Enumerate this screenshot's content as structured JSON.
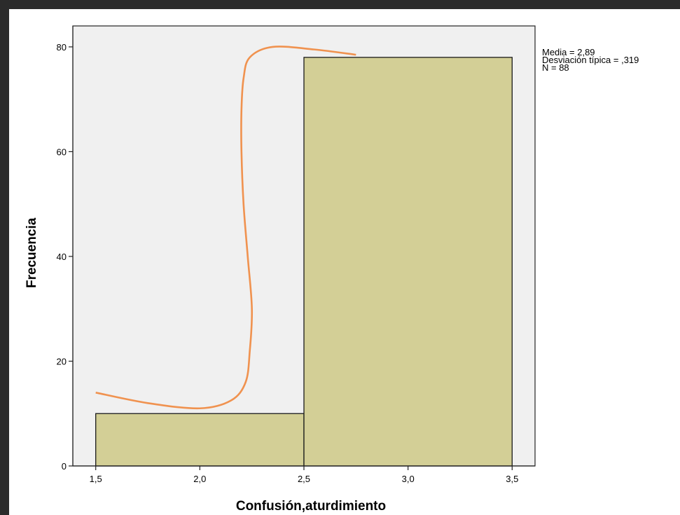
{
  "chart_data": {
    "type": "bar",
    "subtype": "histogram",
    "bins": [
      {
        "start": 1.5,
        "end": 2.5,
        "count": 10
      },
      {
        "start": 2.5,
        "end": 3.5,
        "count": 78
      }
    ],
    "x_ticks": [
      1.5,
      2.0,
      2.5,
      3.0,
      3.5
    ],
    "x_tick_labels": [
      "1,5",
      "2,0",
      "2,5",
      "3,0",
      "3,5"
    ],
    "y_ticks": [
      0,
      20,
      40,
      60,
      80
    ],
    "y_tick_labels": [
      "0",
      "20",
      "40",
      "60",
      "80"
    ],
    "xlim": [
      1.39,
      3.61
    ],
    "ylim": [
      0,
      84
    ],
    "xlabel": "Confusión,aturdimiento",
    "ylabel": "Frecuencia",
    "stats": [
      "Media = 2,89",
      "Desviación típica = ,319",
      "N = 88"
    ],
    "legend_position": "top-right",
    "normal_curve": {
      "mean": 2.89,
      "std": 0.319,
      "points": [
        [
          1.5,
          14
        ],
        [
          1.75,
          12
        ],
        [
          2.0,
          11
        ],
        [
          2.15,
          12.5
        ],
        [
          2.22,
          16
        ],
        [
          2.24,
          22
        ],
        [
          2.25,
          30
        ],
        [
          2.23,
          40
        ],
        [
          2.21,
          50
        ],
        [
          2.2,
          60
        ],
        [
          2.2,
          68
        ],
        [
          2.21,
          74
        ],
        [
          2.24,
          78
        ],
        [
          2.35,
          80
        ],
        [
          2.55,
          79.5
        ],
        [
          2.75,
          78.5
        ]
      ]
    },
    "colors": {
      "plot_background": "#f0f0f0",
      "bar_fill": "#d3cf96",
      "bar_stroke": "#1a1a1a",
      "curve": "#f0924f"
    },
    "grid": false
  }
}
